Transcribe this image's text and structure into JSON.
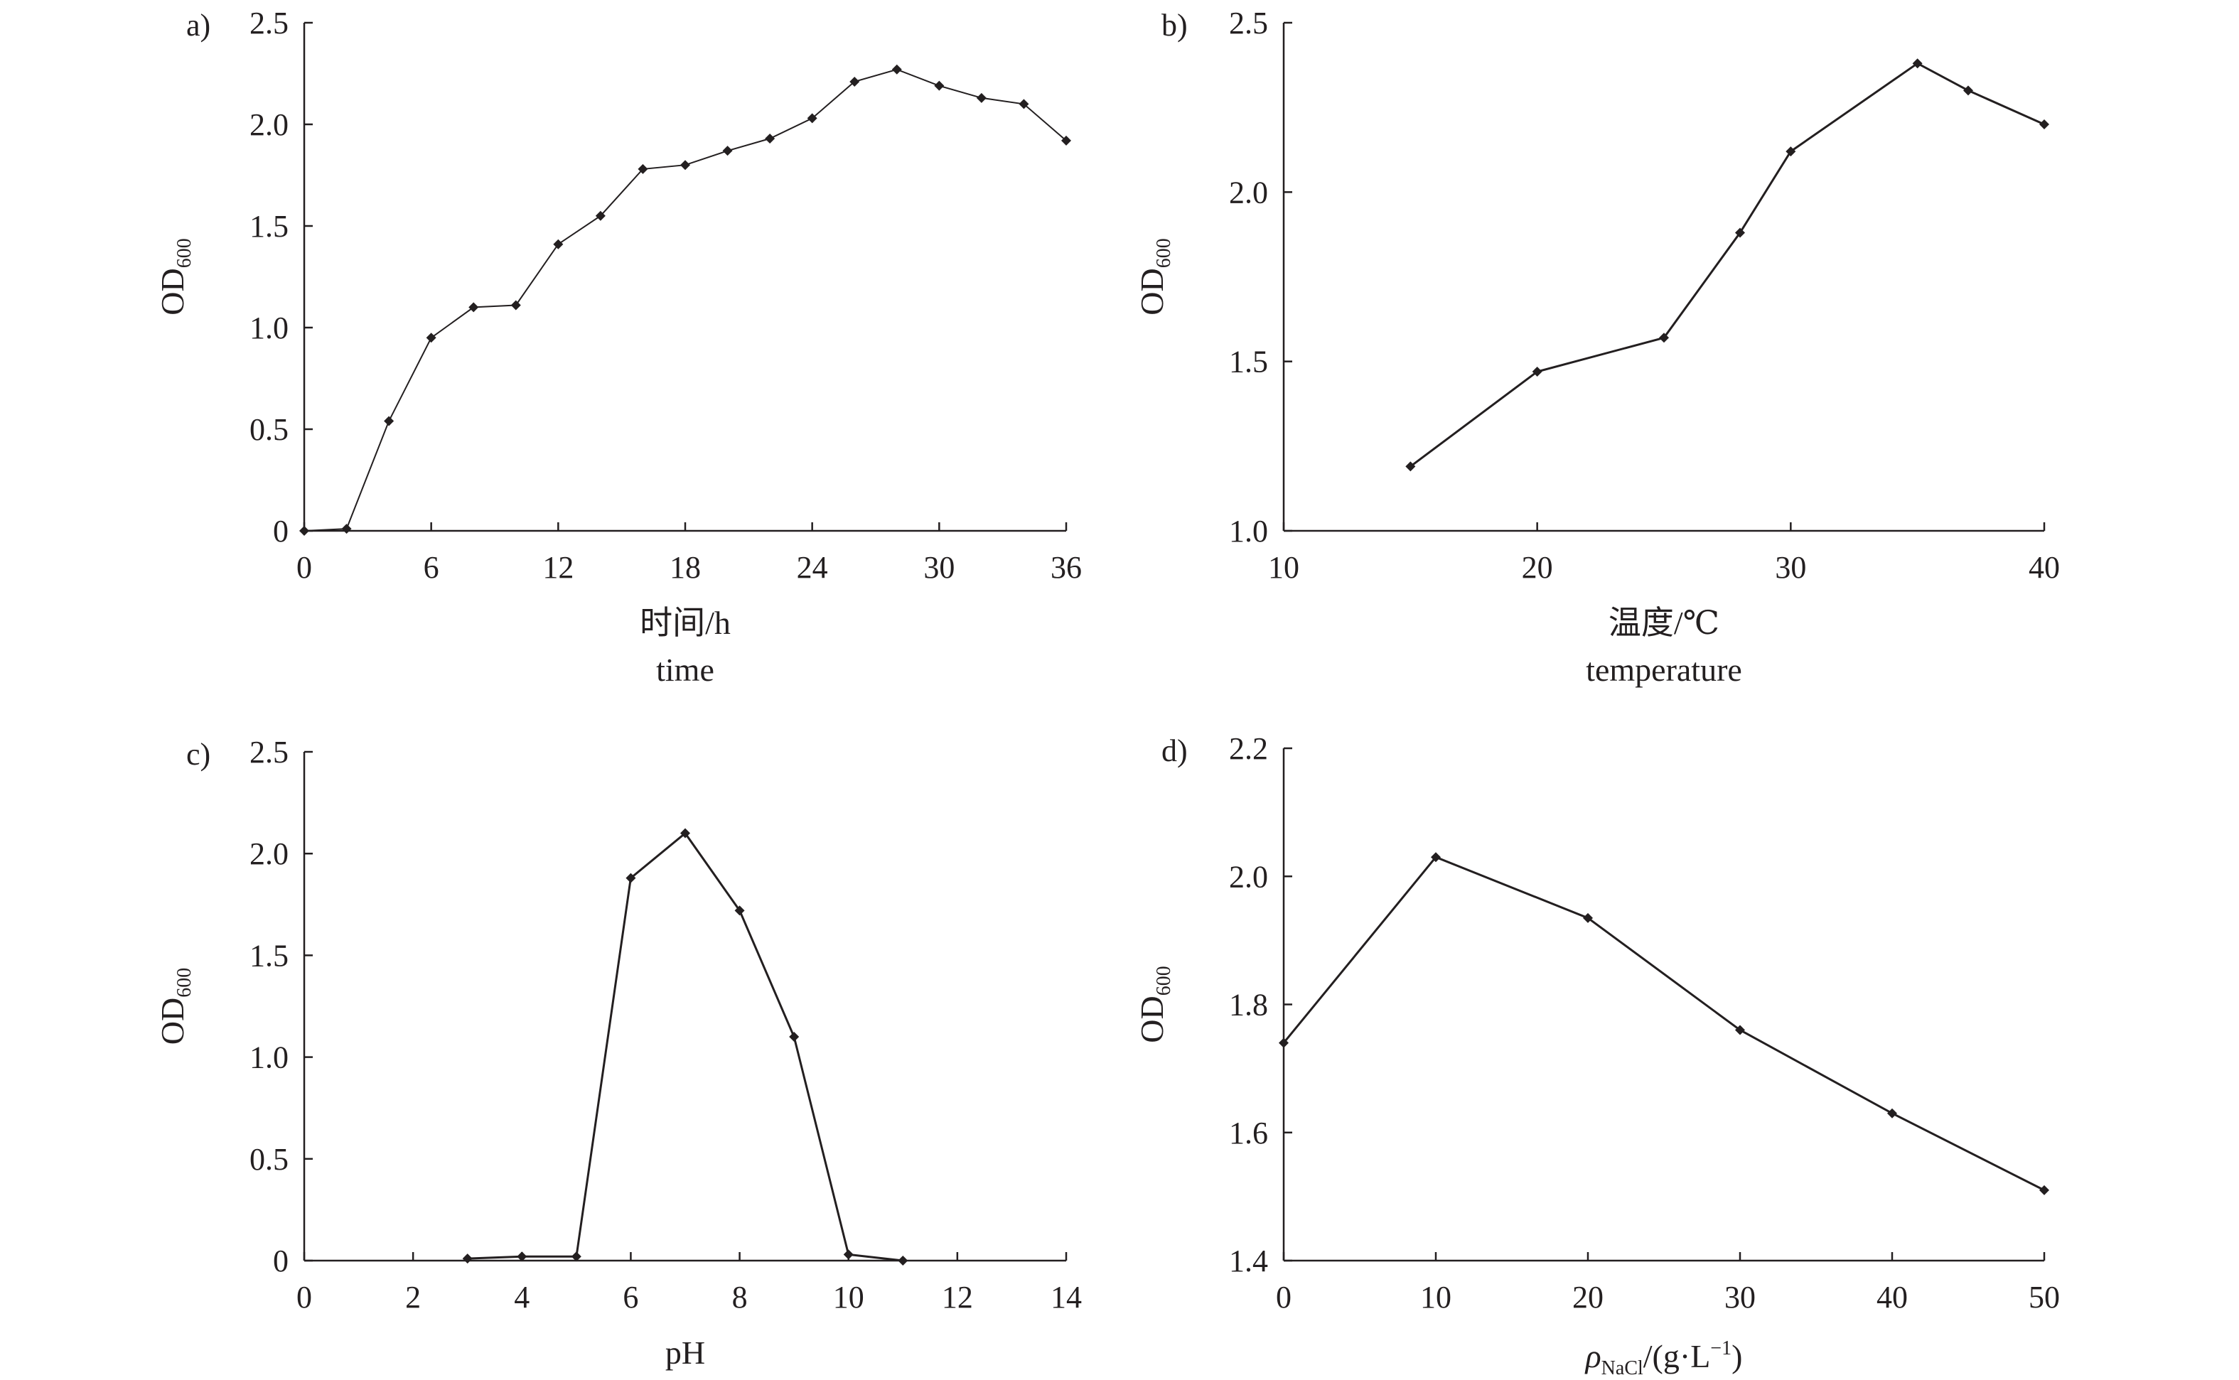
{
  "chart_data": [
    {
      "panel": "a)",
      "type": "line",
      "ylabel": "OD",
      "ylabel_sub": "600",
      "xlabel_lines": [
        "时间/h",
        "time"
      ],
      "xlim": [
        0,
        36
      ],
      "ylim": [
        0,
        2.5
      ],
      "xticks": [
        0,
        6,
        12,
        18,
        24,
        30,
        36
      ],
      "xtick_labels": [
        "0",
        "6",
        "12",
        "18",
        "24",
        "30",
        "36"
      ],
      "yticks": [
        0,
        0.5,
        1.0,
        1.5,
        2.0,
        2.5
      ],
      "ytick_labels": [
        "0",
        "0.5",
        "1.0",
        "1.5",
        "2.0",
        "2.5"
      ],
      "x": [
        0,
        2,
        4,
        6,
        8,
        10,
        12,
        14,
        16,
        18,
        20,
        22,
        24,
        26,
        28,
        30,
        32,
        34,
        36
      ],
      "y": [
        0,
        0.01,
        0.54,
        0.95,
        1.1,
        1.11,
        1.41,
        1.55,
        1.78,
        1.8,
        1.87,
        1.93,
        2.03,
        2.21,
        2.27,
        2.19,
        2.13,
        2.1,
        1.92
      ],
      "thin": true
    },
    {
      "panel": "b)",
      "type": "line",
      "ylabel": "OD",
      "ylabel_sub": "600",
      "xlabel_lines": [
        "温度/℃",
        "temperature"
      ],
      "xlim": [
        10,
        40
      ],
      "ylim": [
        1.0,
        2.5
      ],
      "xticks": [
        10,
        20,
        30,
        40
      ],
      "xtick_labels": [
        "10",
        "20",
        "30",
        "40"
      ],
      "yticks": [
        1.0,
        1.5,
        2.0,
        2.5
      ],
      "ytick_labels": [
        "1.0",
        "1.5",
        "2.0",
        "2.5"
      ],
      "x": [
        15,
        20,
        25,
        28,
        30,
        35,
        37,
        40
      ],
      "y": [
        1.19,
        1.47,
        1.57,
        1.88,
        2.12,
        2.38,
        2.3,
        2.2
      ],
      "thin": false
    },
    {
      "panel": "c)",
      "type": "line",
      "ylabel": "OD",
      "ylabel_sub": "600",
      "xlabel_lines": [
        "pH"
      ],
      "xlim": [
        0,
        14
      ],
      "ylim": [
        0,
        2.5
      ],
      "xticks": [
        0,
        2,
        4,
        6,
        8,
        10,
        12,
        14
      ],
      "xtick_labels": [
        "0",
        "2",
        "4",
        "6",
        "8",
        "10",
        "12",
        "14"
      ],
      "yticks": [
        0,
        0.5,
        1.0,
        1.5,
        2.0,
        2.5
      ],
      "ytick_labels": [
        "0",
        "0.5",
        "1.0",
        "1.5",
        "2.0",
        "2.5"
      ],
      "x": [
        3,
        4,
        5,
        6,
        7,
        8,
        9,
        10,
        11
      ],
      "y": [
        0.01,
        0.02,
        0.02,
        1.88,
        2.1,
        1.72,
        1.1,
        0.03,
        0.0
      ],
      "thin": false
    },
    {
      "panel": "d)",
      "type": "line",
      "ylabel": "OD",
      "ylabel_sub": "600",
      "xlabel_rho": "ρ",
      "xlabel_rho_sub": "NaCl",
      "xlabel_unit": "/(g·L",
      "xlabel_sup": "−1",
      "xlabel_close": ")",
      "xlim": [
        0,
        50
      ],
      "ylim": [
        1.4,
        2.2
      ],
      "xticks": [
        0,
        10,
        20,
        30,
        40,
        50
      ],
      "xtick_labels": [
        "0",
        "10",
        "20",
        "30",
        "40",
        "50"
      ],
      "yticks": [
        1.4,
        1.6,
        1.8,
        2.0,
        2.2
      ],
      "ytick_labels": [
        "1.4",
        "1.6",
        "1.8",
        "2.0",
        "2.2"
      ],
      "x": [
        0,
        10,
        20,
        30,
        40,
        50
      ],
      "y": [
        1.74,
        2.03,
        1.935,
        1.76,
        1.63,
        1.51
      ],
      "thin": false
    }
  ]
}
